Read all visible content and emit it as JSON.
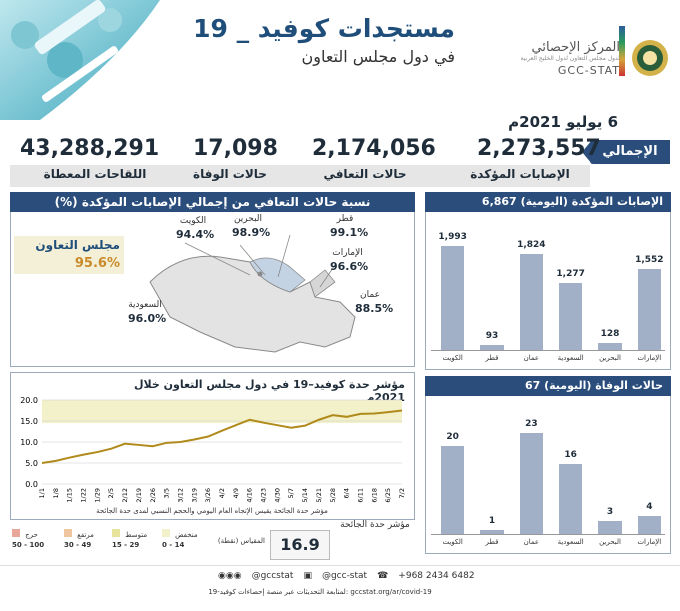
{
  "header": {
    "title": "مستجدات كوفيد _ 19",
    "subtitle": "في دول مجلس التعاون",
    "org_ar": "المركز الإحصائي",
    "org_sub": "لدول مجلس التعاون لدول الخليج العربية",
    "org_en": "GCC-STAT",
    "date": "6 يوليو 2021م"
  },
  "totals": {
    "badge": "الإجمالي",
    "items": [
      {
        "label": "الإصابات المؤكدة",
        "value": "2,273,557"
      },
      {
        "label": "حالات التعافي",
        "value": "2,174,056"
      },
      {
        "label": "حالات الوفاة",
        "value": "17,098"
      },
      {
        "label": "اللقاحات المعطاة",
        "value": "43,288,291"
      }
    ]
  },
  "recovery_map": {
    "title": "نسبة حالات التعافي من إجمالي الإصابات المؤكدة (%)",
    "gcc_label": "مجلس التعاون",
    "gcc_value": "95.6%",
    "countries": [
      {
        "name": "الكويت",
        "value": "94.4%"
      },
      {
        "name": "البحرين",
        "value": "98.9%"
      },
      {
        "name": "قطر",
        "value": "99.1%"
      },
      {
        "name": "الإمارات",
        "value": "96.6%"
      },
      {
        "name": "عمان",
        "value": "88.5%"
      },
      {
        "name": "السعودية",
        "value": "96.0%"
      }
    ]
  },
  "confirmed_daily": {
    "title": "الإصابات المؤكدة (اليومية)",
    "total": "6,867"
  },
  "deaths_daily": {
    "title": "حالات الوفاة (اليومية)",
    "total": "67"
  },
  "severity": {
    "title": "مؤشر حدة كوفيد–19 في دول مجلس التعاون خلال 2021م",
    "note": "مؤشر حدة الجائحة يقيس الإتجاه العام اليومي والحجم النسبي لمدى حدة الجائحة",
    "current_label": "مؤشر حدة الجائحة",
    "current_value": "16.9",
    "scale_label": "المقياس (نقطة)",
    "legend": [
      {
        "label": "منخفض",
        "range": "0 - 14",
        "color": "#f3f1c9"
      },
      {
        "label": "متوسط",
        "range": "15 - 29",
        "color": "#e8e39a"
      },
      {
        "label": "مرتفع",
        "range": "30 - 49",
        "color": "#efc6a0"
      },
      {
        "label": "حرج",
        "range": "50 - 100",
        "color": "#e8a79a"
      }
    ]
  },
  "footer": {
    "handle1": "@gccstat",
    "handle2": "@gcc-stat",
    "phone": "+968 2434 6482",
    "follow": "لمتابعة التحديثات عبر منصة إحصاءات كوفيد-19: gccstat.org/ar/covid-19"
  },
  "chart_data": [
    {
      "type": "bar",
      "title": "الإصابات المؤكدة (اليومية)",
      "categories": [
        "الكويت",
        "قطر",
        "عمان",
        "السعودية",
        "البحرين",
        "الإمارات"
      ],
      "values": [
        1993,
        93,
        1824,
        1277,
        128,
        1552
      ],
      "labels": [
        "1,993",
        "93",
        "1,824",
        "1,277",
        "128",
        "1,552"
      ],
      "ylim": [
        0,
        2100
      ]
    },
    {
      "type": "bar",
      "title": "حالات الوفاة (اليومية)",
      "categories": [
        "الكويت",
        "قطر",
        "عمان",
        "السعودية",
        "البحرين",
        "الإمارات"
      ],
      "values": [
        20,
        1,
        23,
        16,
        3,
        4
      ],
      "ylim": [
        0,
        25
      ]
    },
    {
      "type": "line",
      "title": "مؤشر حدة كوفيد–19 في دول مجلس التعاون خلال 2021م",
      "x": [
        "1/1",
        "1/8",
        "1/15",
        "1/22",
        "1/29",
        "2/5",
        "2/12",
        "2/19",
        "2/26",
        "3/5",
        "3/12",
        "3/19",
        "3/26",
        "4/2",
        "4/9",
        "4/16",
        "4/23",
        "4/30",
        "5/7",
        "5/14",
        "5/21",
        "5/28",
        "6/4",
        "6/11",
        "6/18",
        "6/25",
        "7/2"
      ],
      "values": [
        5.0,
        5.5,
        6.3,
        7.0,
        7.6,
        8.4,
        9.6,
        9.3,
        9.0,
        9.8,
        10.0,
        10.6,
        11.3,
        12.7,
        14.0,
        15.3,
        14.6,
        14.0,
        13.4,
        13.9,
        15.3,
        16.4,
        16.0,
        16.7,
        16.8,
        17.1,
        17.5
      ],
      "yticks": [
        "0.0",
        "5.0",
        "10.0",
        "15.0",
        "20.0"
      ],
      "ylim": [
        0,
        20
      ]
    }
  ]
}
